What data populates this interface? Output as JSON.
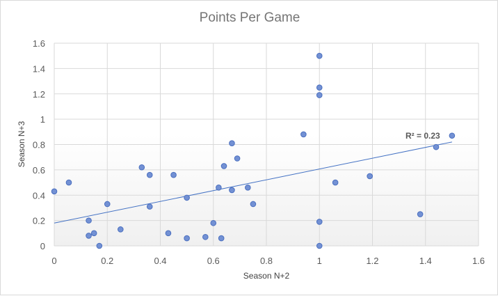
{
  "chart_data": {
    "type": "scatter",
    "title": "Points Per Game",
    "xlabel": "Season N+2",
    "ylabel": "Season N+3",
    "xlim": [
      0,
      1.6
    ],
    "ylim": [
      0,
      1.6
    ],
    "xticks": [
      "0",
      "0.2",
      "0.4",
      "0.6",
      "0.8",
      "1",
      "1.2",
      "1.4",
      "1.6"
    ],
    "yticks": [
      "0",
      "0.2",
      "0.4",
      "0.6",
      "0.8",
      "1",
      "1.2",
      "1.4",
      "1.6"
    ],
    "grid": true,
    "points": [
      [
        0,
        0.43
      ],
      [
        0.055,
        0.5
      ],
      [
        0.13,
        0.2
      ],
      [
        0.13,
        0.08
      ],
      [
        0.15,
        0.1
      ],
      [
        0.17,
        0
      ],
      [
        0.2,
        0.33
      ],
      [
        0.25,
        0.13
      ],
      [
        0.33,
        0.62
      ],
      [
        0.36,
        0.56
      ],
      [
        0.36,
        0.31
      ],
      [
        0.43,
        0.1
      ],
      [
        0.45,
        0.56
      ],
      [
        0.5,
        0.38
      ],
      [
        0.5,
        0.06
      ],
      [
        0.57,
        0.07
      ],
      [
        0.6,
        0.18
      ],
      [
        0.62,
        0.46
      ],
      [
        0.63,
        0.06
      ],
      [
        0.64,
        0.63
      ],
      [
        0.67,
        0.44
      ],
      [
        0.67,
        0.81
      ],
      [
        0.69,
        0.69
      ],
      [
        0.73,
        0.46
      ],
      [
        0.75,
        0.33
      ],
      [
        0.94,
        0.88
      ],
      [
        1.0,
        1.5
      ],
      [
        1.0,
        1.25
      ],
      [
        1.0,
        1.19
      ],
      [
        1.0,
        0.19
      ],
      [
        1.0,
        0
      ],
      [
        1.06,
        0.5
      ],
      [
        1.19,
        0.55
      ],
      [
        1.38,
        0.25
      ],
      [
        1.44,
        0.78
      ],
      [
        1.5,
        0.87
      ]
    ],
    "trendline": {
      "type": "linear",
      "x": [
        0,
        1.5
      ],
      "y": [
        0.18,
        0.82
      ],
      "label": "R² = 0.23"
    },
    "colors": {
      "marker": "#7391d4",
      "marker_edge": "#4a6fbf",
      "trend": "#4472c4",
      "grid": "#d9d9d9"
    }
  }
}
